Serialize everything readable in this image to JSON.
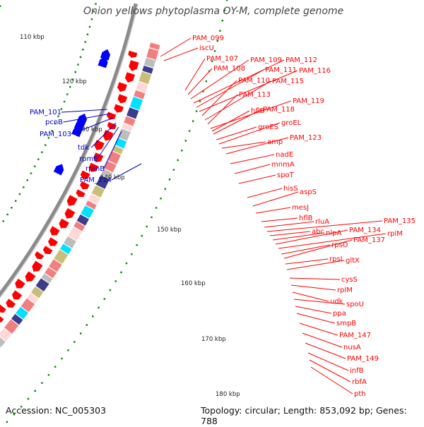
{
  "title": "Onion yellows phytoplasma OY-M, complete genome",
  "accession": "Accession: NC_005303",
  "summary": "Topology: circular; Length: 853,092 bp; Genes: 788",
  "colors": {
    "backbone": "#8a8a8a",
    "forward_cds": "#ff0000",
    "reverse_cds": "#0000ff",
    "right_labels": "#ff0000",
    "left_labels": "#0000cc",
    "ticks": "#008800",
    "gc_pink": "#f08080",
    "gc_khaki": "#c8be78",
    "gc_navy": "#3c3c8c",
    "gc_cyan": "#00e0ff",
    "gc_gray": "#bdbdbd"
  },
  "scale_labels": [
    "110 kbp",
    "120 kbp",
    "130 kbp",
    "140 kbp",
    "150 kbp",
    "160 kbp",
    "170 kbp",
    "180 kbp"
  ],
  "right_genes": [
    "PAM_099",
    "iscU",
    "PAM_107",
    "PAM_108",
    "PAM_109",
    "PAM_112",
    "PAM_111",
    "PAM_116",
    "PAM_110",
    "PAM_115",
    "PAM_113",
    "PAM_119",
    "hflB",
    "PAM_118",
    "groES",
    "groEL",
    "amp",
    "PAM_123",
    "nadE",
    "mnmA",
    "spoT",
    "hisS",
    "aspS",
    "mesJ",
    "hflB",
    "rluA",
    "PAM_135",
    "abc",
    "nlpA",
    "PAM_134",
    "rplM",
    "rpsO",
    "PAM_137",
    "rpsI",
    "gltX",
    "cysS",
    "rplM",
    "udk",
    "spoU",
    "ppa",
    "smpB",
    "PAM_147",
    "nusA",
    "PAM_149",
    "infB",
    "rbfA",
    "pth"
  ],
  "left_genes": [
    "PAM_101",
    "pcnB",
    "PAM_103",
    "tdk",
    "rpmE",
    "rpmB",
    "PAM_114"
  ]
}
